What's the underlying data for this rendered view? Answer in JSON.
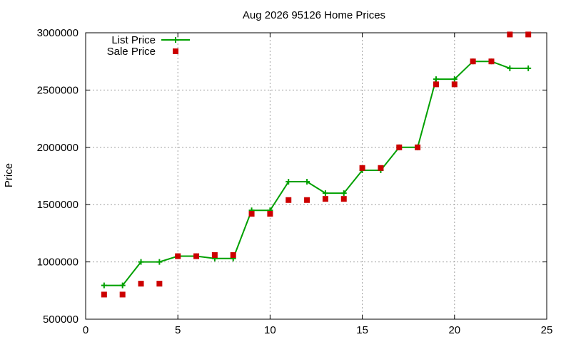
{
  "chart_data": {
    "type": "line",
    "title": "Aug 2026 95126 Home Prices",
    "xlabel": "",
    "ylabel": "Price",
    "xlim": [
      0,
      25
    ],
    "ylim": [
      500000,
      3000000
    ],
    "xticks": [
      0,
      5,
      10,
      15,
      20,
      25
    ],
    "yticks": [
      500000,
      1000000,
      1500000,
      2000000,
      2500000,
      3000000
    ],
    "grid": true,
    "legend_position": "top-left",
    "series": [
      {
        "name": "List Price",
        "color": "#00a000",
        "marker": "plus",
        "style": "line",
        "x": [
          1,
          2,
          3,
          4,
          5,
          6,
          7,
          8,
          9,
          10,
          11,
          12,
          13,
          14,
          15,
          16,
          17,
          18,
          19,
          20,
          21,
          22,
          23,
          24
        ],
        "y": [
          795000,
          795000,
          1000000,
          1000000,
          1050000,
          1050000,
          1030000,
          1030000,
          1450000,
          1450000,
          1700000,
          1700000,
          1600000,
          1600000,
          1800000,
          1800000,
          2000000,
          2000000,
          2595000,
          2595000,
          2750000,
          2750000,
          2690000,
          2690000
        ]
      },
      {
        "name": "Sale Price",
        "color": "#cc0000",
        "marker": "square",
        "style": "points",
        "x": [
          1,
          2,
          3,
          4,
          5,
          6,
          7,
          8,
          9,
          10,
          11,
          12,
          13,
          14,
          15,
          16,
          17,
          18,
          19,
          20,
          21,
          22,
          23,
          24
        ],
        "y": [
          715000,
          715000,
          810000,
          810000,
          1050000,
          1050000,
          1060000,
          1060000,
          1420000,
          1420000,
          1540000,
          1540000,
          1550000,
          1550000,
          1820000,
          1820000,
          2000000,
          2000000,
          2550000,
          2550000,
          2750000,
          2750000,
          2985000,
          2985000
        ]
      }
    ]
  }
}
